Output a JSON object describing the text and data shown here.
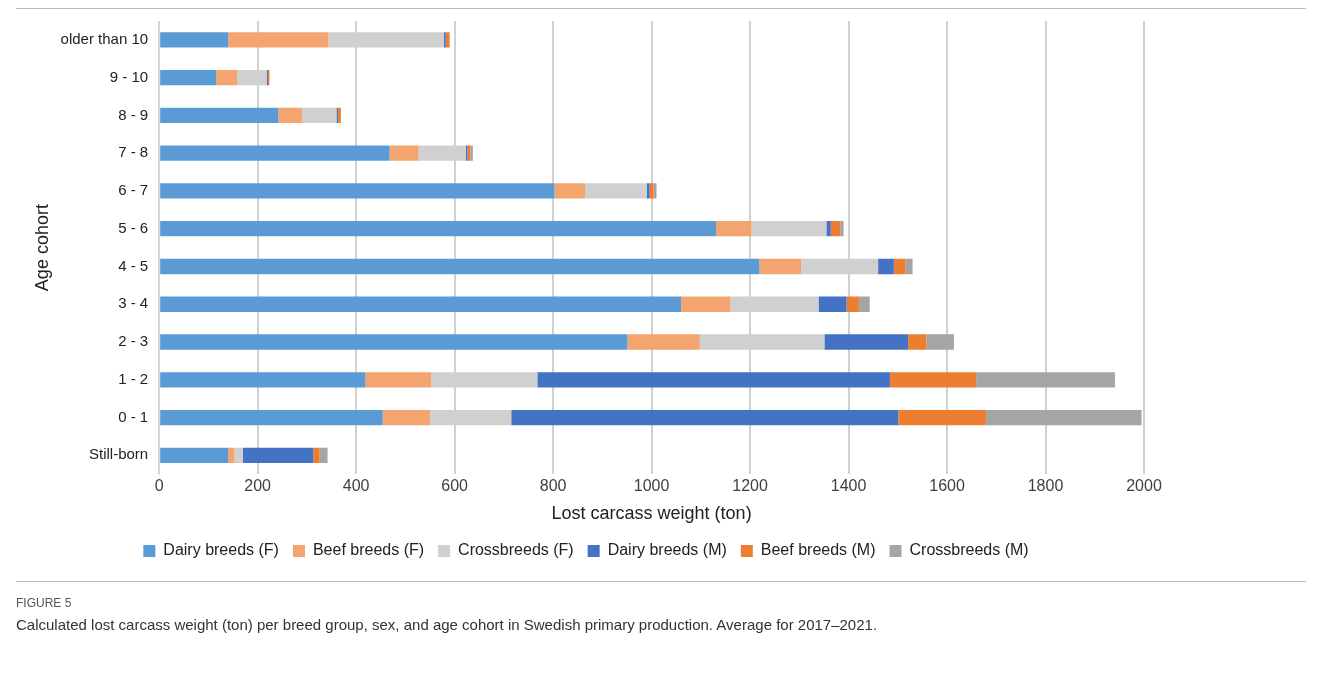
{
  "chart_data": {
    "type": "bar",
    "orientation": "horizontal",
    "stacked": true,
    "xlabel": "Lost carcass weight (ton)",
    "ylabel": "Age cohort",
    "categories": [
      "older than 10",
      "9 - 10",
      "8 - 9",
      "7 - 8",
      "6 - 7",
      "5 - 6",
      "4 - 5",
      "3 - 4",
      "2 - 3",
      "1 - 2",
      "0 - 1",
      "Still-born"
    ],
    "series": [
      {
        "name": "Dairy breeds (F)",
        "color": "#5b9bd5",
        "values": [
          140,
          116,
          242,
          468,
          803,
          1131,
          1219,
          1060,
          951,
          419,
          454,
          140
        ]
      },
      {
        "name": "Beef breeds (F)",
        "color": "#f4a46e",
        "values": [
          204,
          42,
          48,
          59,
          62,
          72,
          85,
          100,
          147,
          133,
          96,
          13
        ]
      },
      {
        "name": "Crossbreeds (F)",
        "color": "#d0d0d0",
        "values": [
          234,
          61,
          70,
          96,
          125,
          152,
          156,
          179,
          253,
          216,
          165,
          17
        ]
      },
      {
        "name": "Dairy breeds (M)",
        "color": "#4472c4",
        "values": [
          4,
          2,
          3,
          3,
          6,
          9,
          32,
          57,
          170,
          716,
          786,
          143
        ]
      },
      {
        "name": "Beef breeds (M)",
        "color": "#ed7d31",
        "values": [
          8,
          3,
          6,
          6,
          8,
          19,
          24,
          25,
          37,
          175,
          178,
          13
        ]
      },
      {
        "name": "Crossbreeds (M)",
        "color": "#a5a5a5",
        "values": [
          null,
          null,
          null,
          5,
          6,
          7,
          14,
          22,
          56,
          282,
          316,
          16
        ]
      }
    ],
    "xlim": [
      0,
      2000
    ],
    "xticks": [
      0,
      200,
      400,
      600,
      800,
      1000,
      1200,
      1400,
      1600,
      1800,
      2000
    ],
    "grid": "x",
    "legend": "bottom",
    "annotations": [
      "FIGURE 5",
      "Calculated lost carcass weight (ton) per breed group, sex, and age cohort in Swedish primary production. Average for 2017–2021."
    ]
  }
}
